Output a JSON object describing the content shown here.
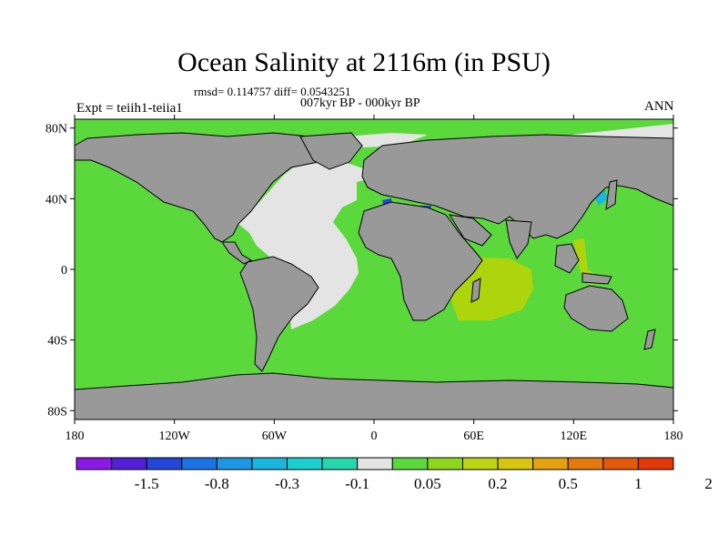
{
  "title": "Ocean Salinity at 2116m (in PSU)",
  "stats_line": "rmsd= 0.114757 diff= 0.0543251",
  "period_line": "007kyr BP - 000kyr BP",
  "experiment_label": "Expt = teiih1-teiia1",
  "season_label": "ANN",
  "map": {
    "lat_tick_labels": [
      "80N",
      "40N",
      "0",
      "40S",
      "80S"
    ],
    "lat_tick_values": [
      80,
      40,
      0,
      -40,
      -80
    ],
    "lon_tick_labels": [
      "180",
      "120W",
      "60W",
      "0",
      "60E",
      "120E",
      "180"
    ],
    "lon_tick_values": [
      -180,
      -120,
      -60,
      0,
      60,
      120,
      180
    ],
    "colors": {
      "land": "#999999",
      "ocean_default": "#5ad83c",
      "light_gray_band": "#e4e4e4",
      "yellow_green_band": "#aed40e",
      "coastline": "#000000"
    }
  },
  "colorbar": {
    "bins": [
      {
        "color": "#8a19e6"
      },
      {
        "color": "#5320d8"
      },
      {
        "color": "#2447d9"
      },
      {
        "color": "#1c73e3"
      },
      {
        "color": "#1d97e4"
      },
      {
        "color": "#1ab6de"
      },
      {
        "color": "#1bcfce"
      },
      {
        "color": "#26d6ad"
      },
      {
        "color": "#e4e4e4"
      },
      {
        "color": "#5ad83c"
      },
      {
        "color": "#8fd61f"
      },
      {
        "color": "#bdd415"
      },
      {
        "color": "#d8c512"
      },
      {
        "color": "#e5a10f"
      },
      {
        "color": "#e5790d"
      },
      {
        "color": "#e45a0c"
      },
      {
        "color": "#e3380a"
      }
    ],
    "labels": [
      {
        "text": "-1.5",
        "boundary": 2
      },
      {
        "text": "-0.8",
        "boundary": 4
      },
      {
        "text": "-0.3",
        "boundary": 6
      },
      {
        "text": "-0.1",
        "boundary": 8
      },
      {
        "text": "0.05",
        "boundary": 10
      },
      {
        "text": "0.2",
        "boundary": 12
      },
      {
        "text": "0.5",
        "boundary": 14
      },
      {
        "text": "1",
        "boundary": 16
      },
      {
        "text": "2",
        "boundary": 18
      }
    ]
  }
}
